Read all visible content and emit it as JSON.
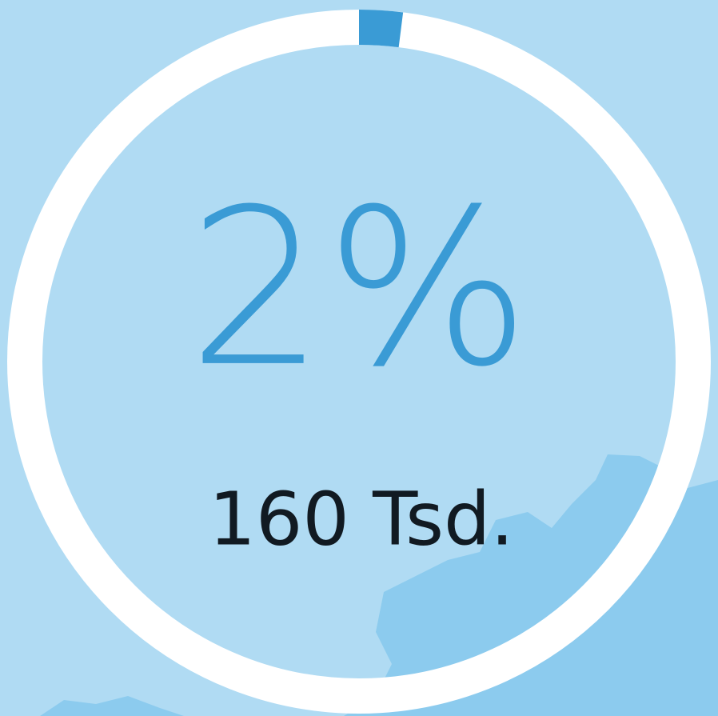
{
  "chart_data": {
    "type": "progress-ring",
    "values": [
      2
    ],
    "value_labels": [
      "2%"
    ],
    "annotation": "160 Tsd.",
    "color": "#3a9bd5",
    "track_color": "#ffffff"
  }
}
